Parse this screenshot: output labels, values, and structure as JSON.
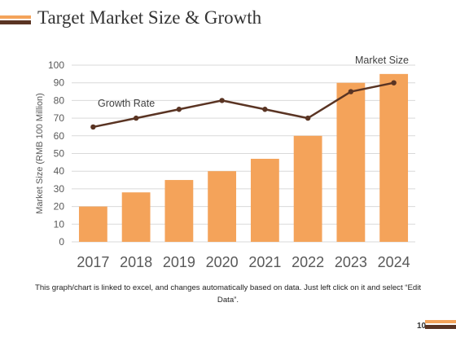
{
  "slide": {
    "title": "Target Market Size & Growth",
    "caption": "This graph/chart is linked to excel, and changes automatically based on data. Just left click on it and select “Edit Data”.",
    "page_number": "10",
    "colors": {
      "accent": "#f4a35a",
      "dark": "#5a3423"
    }
  },
  "chart_data": {
    "type": "bar",
    "categories": [
      "2017",
      "2018",
      "2019",
      "2020",
      "2021",
      "2022",
      "2023",
      "2024"
    ],
    "series": [
      {
        "name": "Market Size",
        "type": "bar",
        "color": "#f4a35a",
        "values": [
          20,
          28,
          35,
          40,
          47,
          60,
          90,
          95
        ]
      },
      {
        "name": "Growth Rate",
        "type": "line",
        "color": "#5a3423",
        "values": [
          65,
          70,
          75,
          80,
          75,
          70,
          85,
          90
        ]
      }
    ],
    "ylabel": "Market Size (RMB 100 Million)",
    "xlabel": "",
    "ylim": [
      0,
      100
    ],
    "yticks": [
      0,
      10,
      20,
      30,
      40,
      50,
      60,
      70,
      80,
      90,
      100
    ],
    "grid": true,
    "gridColor": "#d9d9d9"
  }
}
